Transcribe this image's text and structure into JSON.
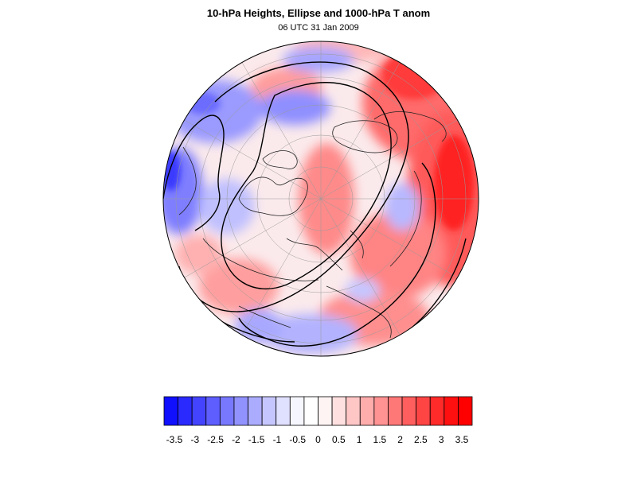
{
  "header": {
    "title": "10-hPa Heights, Ellipse and 1000-hPa T anom",
    "subtitle": "06 UTC 31 Jan 2009"
  },
  "map": {
    "projection": "orthographic-north-polar",
    "field": "temperature-anomaly",
    "positive_color": "#ff0000",
    "negative_color": "#0000ff"
  },
  "colorbar": {
    "colors": [
      "#1010ff",
      "#2a2aff",
      "#4444ff",
      "#5e5eff",
      "#7878ff",
      "#9292ff",
      "#acacff",
      "#c6c6ff",
      "#e0e0ff",
      "#f6f6ff",
      "#ffffff",
      "#fff4f4",
      "#ffe0e0",
      "#ffc6c6",
      "#ffacac",
      "#ff9292",
      "#ff7878",
      "#ff5e5e",
      "#ff4444",
      "#ff2a2a",
      "#ff1010",
      "#ff0000"
    ],
    "tick_labels": [
      "-3.5",
      "-3",
      "-2.5",
      "-2",
      "-1.5",
      "-1",
      "-0.5",
      "0",
      "0.5",
      "1",
      "1.5",
      "2",
      "2.5",
      "3",
      "3.5"
    ]
  }
}
